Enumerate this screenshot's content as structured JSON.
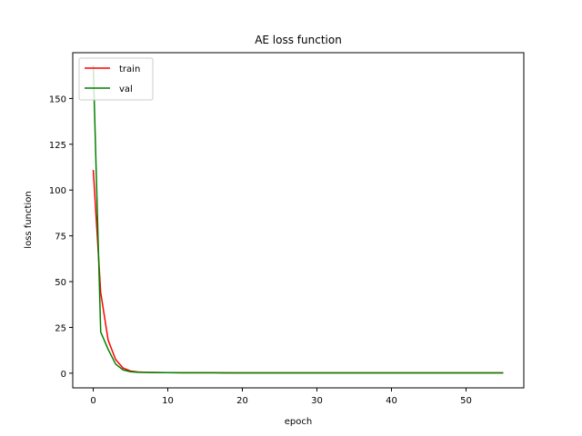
{
  "chart_data": {
    "type": "line",
    "title": "AE loss function",
    "xlabel": "epoch",
    "ylabel": "loss function",
    "xlim": [
      -2.75,
      57.75
    ],
    "ylim": [
      -8,
      175
    ],
    "xticks": [
      0,
      10,
      20,
      30,
      40,
      50
    ],
    "yticks": [
      0,
      25,
      50,
      75,
      100,
      125,
      150
    ],
    "grid": false,
    "legend_position": "top-left",
    "series": [
      {
        "name": "train",
        "color": "#ff0000",
        "x": [
          0,
          1,
          2,
          3,
          4,
          5,
          6,
          7,
          8,
          9,
          10,
          11,
          12,
          13,
          14,
          15,
          16,
          17,
          18,
          19,
          20,
          21,
          22,
          23,
          24,
          25,
          26,
          27,
          28,
          29,
          30,
          31,
          32,
          33,
          34,
          35,
          36,
          37,
          38,
          39,
          40,
          41,
          42,
          43,
          44,
          45,
          46,
          47,
          48,
          49,
          50,
          51,
          52,
          53,
          54,
          55
        ],
        "y": [
          111,
          44,
          18,
          7.5,
          2.8,
          1.2,
          0.7,
          0.5,
          0.4,
          0.35,
          0.3,
          0.28,
          0.26,
          0.25,
          0.24,
          0.23,
          0.22,
          0.22,
          0.21,
          0.21,
          0.2,
          0.2,
          0.2,
          0.2,
          0.2,
          0.2,
          0.2,
          0.2,
          0.2,
          0.2,
          0.2,
          0.2,
          0.2,
          0.2,
          0.2,
          0.2,
          0.2,
          0.2,
          0.2,
          0.2,
          0.2,
          0.2,
          0.2,
          0.2,
          0.2,
          0.2,
          0.2,
          0.2,
          0.2,
          0.2,
          0.2,
          0.2,
          0.2,
          0.2,
          0.2,
          0.2
        ]
      },
      {
        "name": "val",
        "color": "#008000",
        "x": [
          0,
          1,
          2,
          3,
          4,
          5,
          6,
          7,
          8,
          9,
          10,
          11,
          12,
          13,
          14,
          15,
          16,
          17,
          18,
          19,
          20,
          21,
          22,
          23,
          24,
          25,
          26,
          27,
          28,
          29,
          30,
          31,
          32,
          33,
          34,
          35,
          36,
          37,
          38,
          39,
          40,
          41,
          42,
          43,
          44,
          45,
          46,
          47,
          48,
          49,
          50,
          51,
          52,
          53,
          54,
          55
        ],
        "y": [
          168,
          22.5,
          13,
          5,
          1.8,
          0.8,
          0.5,
          0.4,
          0.35,
          0.3,
          0.28,
          0.26,
          0.25,
          0.24,
          0.23,
          0.22,
          0.22,
          0.21,
          0.21,
          0.2,
          0.2,
          0.2,
          0.2,
          0.2,
          0.2,
          0.2,
          0.2,
          0.2,
          0.2,
          0.2,
          0.2,
          0.2,
          0.2,
          0.2,
          0.2,
          0.2,
          0.2,
          0.2,
          0.2,
          0.2,
          0.2,
          0.2,
          0.2,
          0.2,
          0.2,
          0.2,
          0.2,
          0.2,
          0.2,
          0.2,
          0.2,
          0.2,
          0.2,
          0.2,
          0.2,
          0.2
        ]
      }
    ]
  }
}
